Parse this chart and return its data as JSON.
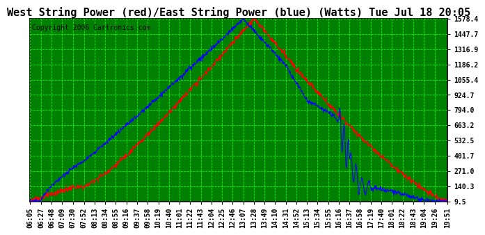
{
  "title": "West String Power (red)/East String Power (blue) (Watts) Tue Jul 18 20:05",
  "copyright": "Copyright 2006 Cartronics.com",
  "background_color": "#ffffff",
  "plot_bg_color": "#008000",
  "grid_color": "#00ff00",
  "yticks": [
    9.5,
    140.3,
    271.0,
    401.7,
    532.5,
    663.2,
    794.0,
    924.7,
    1055.4,
    1186.2,
    1316.9,
    1447.7,
    1578.4
  ],
  "ytick_labels": [
    "9.5",
    "140.3",
    "271.0",
    "401.7",
    "532.5",
    "663.2",
    "794.0",
    "924.7",
    "1055.4",
    "1186.2",
    "1316.9",
    "1447.7",
    "1578.4"
  ],
  "red_color": "#ff0000",
  "blue_color": "#0000ff",
  "title_fontsize": 11,
  "copyright_fontsize": 7,
  "tick_fontsize": 7,
  "xtick_labels": [
    "06:05",
    "06:27",
    "06:48",
    "07:09",
    "07:30",
    "07:52",
    "08:13",
    "08:34",
    "08:55",
    "09:16",
    "09:37",
    "09:58",
    "10:19",
    "10:40",
    "11:01",
    "11:22",
    "11:43",
    "12:04",
    "12:25",
    "12:46",
    "13:07",
    "13:28",
    "13:49",
    "14:10",
    "14:31",
    "14:52",
    "15:13",
    "15:34",
    "15:55",
    "16:16",
    "16:37",
    "16:58",
    "17:19",
    "17:40",
    "18:01",
    "18:22",
    "18:43",
    "19:04",
    "19:26",
    "19:51"
  ]
}
